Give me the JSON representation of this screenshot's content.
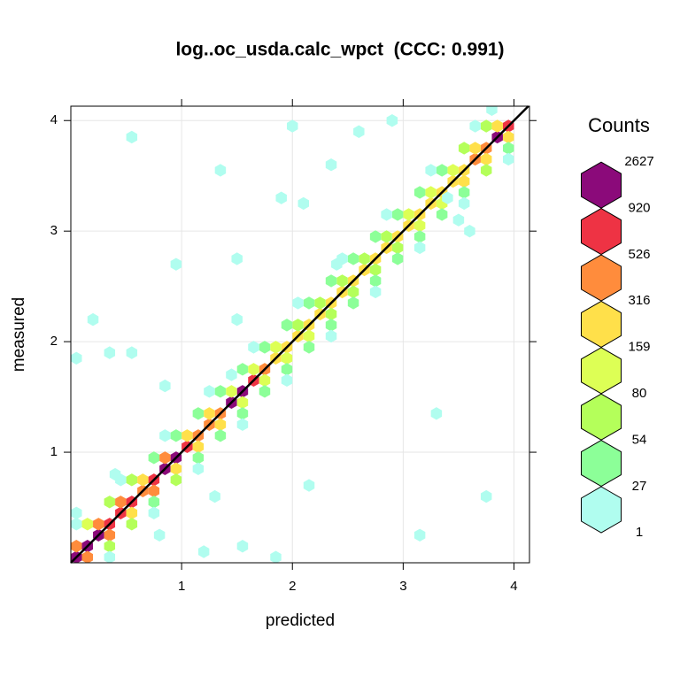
{
  "chart_data": {
    "type": "hexbin",
    "title": "log..oc_usda.calc_wpct  (CCC: 0.991)",
    "x_label": "predicted",
    "y_label": "measured",
    "xlim": [
      0,
      4.14
    ],
    "ylim": [
      0,
      4.13
    ],
    "xticks": [
      1,
      2,
      3,
      4
    ],
    "yticks": [
      1,
      2,
      3,
      4
    ],
    "grid": true,
    "legend_title": "Counts",
    "legend_breaks": [
      1,
      27,
      54,
      80,
      159,
      316,
      526,
      920,
      2627
    ],
    "colors": [
      "#b0fdef",
      "#8cff98",
      "#b4ff5a",
      "#ddff55",
      "#ffe04a",
      "#ff8c3c",
      "#ee3344",
      "#8b0a7a"
    ],
    "x": [
      0.05,
      0.15,
      0.25,
      0.35,
      0.45,
      0.55,
      0.65,
      0.75,
      0.85,
      0.95,
      1.05,
      1.15,
      1.25,
      1.35,
      1.45,
      1.55,
      1.65,
      1.75,
      1.85,
      1.95,
      2.05,
      2.15,
      2.25,
      2.35,
      2.45,
      2.55,
      2.65,
      2.75,
      2.85,
      2.95,
      3.05,
      3.15,
      3.25,
      3.35,
      3.45,
      3.55,
      3.65,
      3.75,
      3.85,
      3.95,
      0.15,
      0.35,
      0.55,
      0.75,
      0.95,
      1.15,
      1.35,
      1.55,
      1.75,
      1.95,
      2.15,
      2.35,
      2.55,
      2.75,
      2.95,
      3.15,
      3.35,
      3.55,
      3.75,
      3.95,
      0.05,
      0.25,
      0.45,
      0.65,
      0.85,
      1.05,
      1.25,
      1.45,
      1.65,
      1.85,
      2.05,
      2.25,
      2.45,
      2.65,
      2.85,
      3.05,
      3.25,
      3.45,
      3.65,
      3.85,
      0.35,
      0.55,
      0.75,
      0.95,
      1.15,
      1.35,
      1.55,
      1.75,
      1.95,
      2.15,
      2.35,
      2.55,
      2.75,
      2.95,
      3.15,
      3.35,
      3.55,
      3.75,
      3.95,
      0.15,
      0.35,
      0.55,
      0.75,
      0.95,
      1.15,
      1.35,
      1.55,
      1.75,
      1.95,
      2.15,
      2.35,
      2.55,
      2.75,
      2.95,
      3.15,
      3.35,
      3.55,
      3.75,
      0.35,
      0.75,
      1.15,
      1.55,
      1.95,
      2.35,
      2.75,
      3.15,
      3.55,
      3.95,
      0.05,
      0.45,
      0.85,
      1.25,
      1.65,
      2.05,
      2.45,
      2.85,
      3.25,
      3.65,
      0.55,
      1.35,
      2,
      3.8,
      0.95,
      1.5,
      0.2,
      0.05,
      0.35,
      0.55,
      0.85,
      0.05,
      2.15,
      3.3,
      3.75,
      3.15,
      1.55,
      1.85,
      2.4,
      2.6,
      2.9,
      2.35,
      1.9,
      2.1,
      1.5,
      1.45,
      0.4,
      0.8,
      1.2,
      1.3,
      3.5,
      3.6,
      3.4
    ],
    "y": [
      0.05,
      0.15,
      0.25,
      0.35,
      0.45,
      0.55,
      0.65,
      0.75,
      0.85,
      0.95,
      1.05,
      1.15,
      1.25,
      1.35,
      1.45,
      1.55,
      1.65,
      1.75,
      1.85,
      1.95,
      2.05,
      2.15,
      2.25,
      2.35,
      2.45,
      2.55,
      2.65,
      2.75,
      2.85,
      2.95,
      3.05,
      3.15,
      3.25,
      3.35,
      3.45,
      3.55,
      3.65,
      3.75,
      3.85,
      3.95,
      0.05,
      0.25,
      0.45,
      0.65,
      0.85,
      1.05,
      1.25,
      1.45,
      1.65,
      1.85,
      2.05,
      2.25,
      2.45,
      2.65,
      2.85,
      3.05,
      3.25,
      3.45,
      3.65,
      3.85,
      0.15,
      0.35,
      0.55,
      0.75,
      0.95,
      1.15,
      1.35,
      1.55,
      1.75,
      1.95,
      2.15,
      2.35,
      2.55,
      2.75,
      2.95,
      3.15,
      3.35,
      3.55,
      3.75,
      3.95,
      0.15,
      0.35,
      0.55,
      0.75,
      0.95,
      1.15,
      1.35,
      1.55,
      1.75,
      1.95,
      2.15,
      2.35,
      2.55,
      2.75,
      2.95,
      3.15,
      3.35,
      3.55,
      3.75,
      0.35,
      0.55,
      0.75,
      0.95,
      1.15,
      1.35,
      1.55,
      1.75,
      1.95,
      2.15,
      2.35,
      2.55,
      2.75,
      2.95,
      3.15,
      3.35,
      3.55,
      3.75,
      3.95,
      0.05,
      0.45,
      0.85,
      1.25,
      1.65,
      2.05,
      2.45,
      2.85,
      3.25,
      3.65,
      0.35,
      0.75,
      1.15,
      1.55,
      1.95,
      2.35,
      2.75,
      3.15,
      3.55,
      3.95,
      3.85,
      3.55,
      3.95,
      4.1,
      2.7,
      2.2,
      2.2,
      1.85,
      1.9,
      1.9,
      1.6,
      0.45,
      0.7,
      1.35,
      0.6,
      0.25,
      0.15,
      0.05,
      2.7,
      3.9,
      4.0,
      3.6,
      3.3,
      3.25,
      2.75,
      1.7,
      0.8,
      0.25,
      0.1,
      0.6,
      3.1,
      3.0,
      3.3
    ],
    "counts": [
      2627,
      1800,
      920,
      900,
      700,
      600,
      520,
      900,
      920,
      1500,
      600,
      500,
      450,
      500,
      920,
      1000,
      800,
      400,
      300,
      250,
      200,
      180,
      170,
      160,
      160,
      170,
      170,
      160,
      170,
      180,
      170,
      160,
      170,
      180,
      200,
      220,
      320,
      400,
      930,
      600,
      400,
      350,
      300,
      320,
      200,
      300,
      200,
      150,
      100,
      90,
      80,
      70,
      60,
      60,
      70,
      80,
      100,
      160,
      300,
      200,
      500,
      400,
      350,
      300,
      330,
      200,
      250,
      120,
      90,
      80,
      70,
      60,
      60,
      70,
      60,
      80,
      90,
      120,
      200,
      300,
      60,
      60,
      50,
      55,
      40,
      50,
      40,
      30,
      30,
      30,
      28,
      28,
      30,
      30,
      30,
      30,
      40,
      60,
      50,
      80,
      60,
      55,
      50,
      45,
      40,
      35,
      30,
      30,
      28,
      28,
      30,
      30,
      28,
      30,
      30,
      40,
      55,
      60,
      12,
      15,
      10,
      14,
      12,
      10,
      8,
      9,
      10,
      12,
      15,
      12,
      14,
      10,
      9,
      11,
      8,
      10,
      12,
      14,
      1,
      1,
      1,
      1,
      1,
      1,
      2,
      1,
      2,
      1,
      1,
      3,
      1,
      1,
      1,
      1,
      1,
      1,
      2,
      1,
      1,
      1,
      1,
      1,
      1,
      2,
      3,
      2,
      1,
      1,
      2,
      1,
      2
    ]
  }
}
